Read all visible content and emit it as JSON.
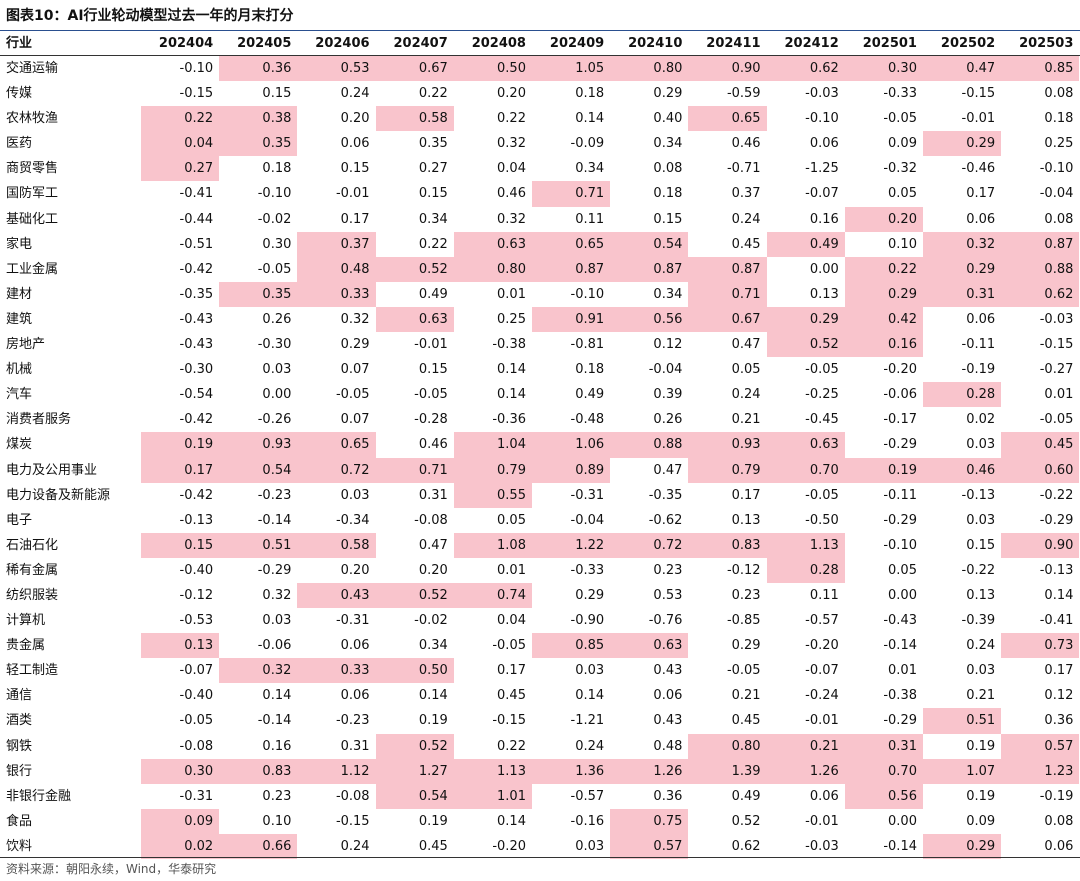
{
  "title": "图表10：AI行业轮动模型过去一年的月末打分",
  "source": "资料来源：朝阳永续，Wind，华泰研究",
  "header": {
    "first": "行业",
    "months": [
      "202404",
      "202405",
      "202406",
      "202407",
      "202408",
      "202409",
      "202410",
      "202411",
      "202412",
      "202501",
      "202502",
      "202503"
    ]
  },
  "colors": {
    "highlight": "#f9c4cc",
    "rule": "#2a4f8f"
  },
  "rows": [
    {
      "name": "交通运输",
      "values": [
        "-0.10",
        "0.36",
        "0.53",
        "0.67",
        "0.50",
        "1.05",
        "0.80",
        "0.90",
        "0.62",
        "0.30",
        "0.47",
        "0.85"
      ],
      "highlight": [
        false,
        true,
        true,
        true,
        true,
        true,
        true,
        true,
        true,
        true,
        true,
        true
      ]
    },
    {
      "name": "传媒",
      "values": [
        "-0.15",
        "0.15",
        "0.24",
        "0.22",
        "0.20",
        "0.18",
        "0.29",
        "-0.59",
        "-0.03",
        "-0.33",
        "-0.15",
        "0.08"
      ],
      "highlight": [
        false,
        false,
        false,
        false,
        false,
        false,
        false,
        false,
        false,
        false,
        false,
        false
      ]
    },
    {
      "name": "农林牧渔",
      "values": [
        "0.22",
        "0.38",
        "0.20",
        "0.58",
        "0.22",
        "0.14",
        "0.40",
        "0.65",
        "-0.10",
        "-0.05",
        "-0.01",
        "0.18"
      ],
      "highlight": [
        true,
        true,
        false,
        true,
        false,
        false,
        false,
        true,
        false,
        false,
        false,
        false
      ]
    },
    {
      "name": "医药",
      "values": [
        "0.04",
        "0.35",
        "0.06",
        "0.35",
        "0.32",
        "-0.09",
        "0.34",
        "0.46",
        "0.06",
        "0.09",
        "0.29",
        "0.25"
      ],
      "highlight": [
        true,
        true,
        false,
        false,
        false,
        false,
        false,
        false,
        false,
        false,
        true,
        false
      ]
    },
    {
      "name": "商贸零售",
      "values": [
        "0.27",
        "0.18",
        "0.15",
        "0.27",
        "0.04",
        "0.34",
        "0.08",
        "-0.71",
        "-1.25",
        "-0.32",
        "-0.46",
        "-0.10"
      ],
      "highlight": [
        true,
        false,
        false,
        false,
        false,
        false,
        false,
        false,
        false,
        false,
        false,
        false
      ]
    },
    {
      "name": "国防军工",
      "values": [
        "-0.41",
        "-0.10",
        "-0.01",
        "0.15",
        "0.46",
        "0.71",
        "0.18",
        "0.37",
        "-0.07",
        "0.05",
        "0.17",
        "-0.04"
      ],
      "highlight": [
        false,
        false,
        false,
        false,
        false,
        true,
        false,
        false,
        false,
        false,
        false,
        false
      ]
    },
    {
      "name": "基础化工",
      "values": [
        "-0.44",
        "-0.02",
        "0.17",
        "0.34",
        "0.32",
        "0.11",
        "0.15",
        "0.24",
        "0.16",
        "0.20",
        "0.06",
        "0.08"
      ],
      "highlight": [
        false,
        false,
        false,
        false,
        false,
        false,
        false,
        false,
        false,
        true,
        false,
        false
      ]
    },
    {
      "name": "家电",
      "values": [
        "-0.51",
        "0.30",
        "0.37",
        "0.22",
        "0.63",
        "0.65",
        "0.54",
        "0.45",
        "0.49",
        "0.10",
        "0.32",
        "0.87"
      ],
      "highlight": [
        false,
        false,
        true,
        false,
        true,
        true,
        true,
        false,
        true,
        false,
        true,
        true
      ]
    },
    {
      "name": "工业金属",
      "values": [
        "-0.42",
        "-0.05",
        "0.48",
        "0.52",
        "0.80",
        "0.87",
        "0.87",
        "0.87",
        "0.00",
        "0.22",
        "0.29",
        "0.88"
      ],
      "highlight": [
        false,
        false,
        true,
        true,
        true,
        true,
        true,
        true,
        false,
        true,
        true,
        true
      ]
    },
    {
      "name": "建材",
      "values": [
        "-0.35",
        "0.35",
        "0.33",
        "0.49",
        "0.01",
        "-0.10",
        "0.34",
        "0.71",
        "0.13",
        "0.29",
        "0.31",
        "0.62"
      ],
      "highlight": [
        false,
        true,
        true,
        false,
        false,
        false,
        false,
        true,
        false,
        true,
        true,
        true
      ]
    },
    {
      "name": "建筑",
      "values": [
        "-0.43",
        "0.26",
        "0.32",
        "0.63",
        "0.25",
        "0.91",
        "0.56",
        "0.67",
        "0.29",
        "0.42",
        "0.06",
        "-0.03"
      ],
      "highlight": [
        false,
        false,
        false,
        true,
        false,
        true,
        true,
        true,
        true,
        true,
        false,
        false
      ]
    },
    {
      "name": "房地产",
      "values": [
        "-0.43",
        "-0.30",
        "0.29",
        "-0.01",
        "-0.38",
        "-0.81",
        "0.12",
        "0.47",
        "0.52",
        "0.16",
        "-0.11",
        "-0.15"
      ],
      "highlight": [
        false,
        false,
        false,
        false,
        false,
        false,
        false,
        false,
        true,
        true,
        false,
        false
      ]
    },
    {
      "name": "机械",
      "values": [
        "-0.30",
        "0.03",
        "0.07",
        "0.15",
        "0.14",
        "0.18",
        "-0.04",
        "0.05",
        "-0.05",
        "-0.20",
        "-0.19",
        "-0.27"
      ],
      "highlight": [
        false,
        false,
        false,
        false,
        false,
        false,
        false,
        false,
        false,
        false,
        false,
        false
      ]
    },
    {
      "name": "汽车",
      "values": [
        "-0.54",
        "0.00",
        "-0.05",
        "-0.05",
        "0.14",
        "0.49",
        "0.39",
        "0.24",
        "-0.25",
        "-0.06",
        "0.28",
        "0.01"
      ],
      "highlight": [
        false,
        false,
        false,
        false,
        false,
        false,
        false,
        false,
        false,
        false,
        true,
        false
      ]
    },
    {
      "name": "消费者服务",
      "values": [
        "-0.42",
        "-0.26",
        "0.07",
        "-0.28",
        "-0.36",
        "-0.48",
        "0.26",
        "0.21",
        "-0.45",
        "-0.17",
        "0.02",
        "-0.05"
      ],
      "highlight": [
        false,
        false,
        false,
        false,
        false,
        false,
        false,
        false,
        false,
        false,
        false,
        false
      ]
    },
    {
      "name": "煤炭",
      "values": [
        "0.19",
        "0.93",
        "0.65",
        "0.46",
        "1.04",
        "1.06",
        "0.88",
        "0.93",
        "0.63",
        "-0.29",
        "0.03",
        "0.45"
      ],
      "highlight": [
        true,
        true,
        true,
        false,
        true,
        true,
        true,
        true,
        true,
        false,
        false,
        true
      ]
    },
    {
      "name": "电力及公用事业",
      "values": [
        "0.17",
        "0.54",
        "0.72",
        "0.71",
        "0.79",
        "0.89",
        "0.47",
        "0.79",
        "0.70",
        "0.19",
        "0.46",
        "0.60"
      ],
      "highlight": [
        true,
        true,
        true,
        true,
        true,
        true,
        false,
        true,
        true,
        true,
        true,
        true
      ]
    },
    {
      "name": "电力设备及新能源",
      "values": [
        "-0.42",
        "-0.23",
        "0.03",
        "0.31",
        "0.55",
        "-0.31",
        "-0.35",
        "0.17",
        "-0.05",
        "-0.11",
        "-0.13",
        "-0.22"
      ],
      "highlight": [
        false,
        false,
        false,
        false,
        true,
        false,
        false,
        false,
        false,
        false,
        false,
        false
      ]
    },
    {
      "name": "电子",
      "values": [
        "-0.13",
        "-0.14",
        "-0.34",
        "-0.08",
        "0.05",
        "-0.04",
        "-0.62",
        "0.13",
        "-0.50",
        "-0.29",
        "0.03",
        "-0.29"
      ],
      "highlight": [
        false,
        false,
        false,
        false,
        false,
        false,
        false,
        false,
        false,
        false,
        false,
        false
      ]
    },
    {
      "name": "石油石化",
      "values": [
        "0.15",
        "0.51",
        "0.58",
        "0.47",
        "1.08",
        "1.22",
        "0.72",
        "0.83",
        "1.13",
        "-0.10",
        "0.15",
        "0.90"
      ],
      "highlight": [
        true,
        true,
        true,
        false,
        true,
        true,
        true,
        true,
        true,
        false,
        false,
        true
      ]
    },
    {
      "name": "稀有金属",
      "values": [
        "-0.40",
        "-0.29",
        "0.20",
        "0.20",
        "0.01",
        "-0.33",
        "0.23",
        "-0.12",
        "0.28",
        "0.05",
        "-0.22",
        "-0.13"
      ],
      "highlight": [
        false,
        false,
        false,
        false,
        false,
        false,
        false,
        false,
        true,
        false,
        false,
        false
      ]
    },
    {
      "name": "纺织服装",
      "values": [
        "-0.12",
        "0.32",
        "0.43",
        "0.52",
        "0.74",
        "0.29",
        "0.53",
        "0.23",
        "0.11",
        "0.00",
        "0.13",
        "0.14"
      ],
      "highlight": [
        false,
        false,
        true,
        true,
        true,
        false,
        false,
        false,
        false,
        false,
        false,
        false
      ]
    },
    {
      "name": "计算机",
      "values": [
        "-0.53",
        "0.03",
        "-0.31",
        "-0.02",
        "0.04",
        "-0.90",
        "-0.76",
        "-0.85",
        "-0.57",
        "-0.43",
        "-0.39",
        "-0.41"
      ],
      "highlight": [
        false,
        false,
        false,
        false,
        false,
        false,
        false,
        false,
        false,
        false,
        false,
        false
      ]
    },
    {
      "name": "贵金属",
      "values": [
        "0.13",
        "-0.06",
        "0.06",
        "0.34",
        "-0.05",
        "0.85",
        "0.63",
        "0.29",
        "-0.20",
        "-0.14",
        "0.24",
        "0.73"
      ],
      "highlight": [
        true,
        false,
        false,
        false,
        false,
        true,
        true,
        false,
        false,
        false,
        false,
        true
      ]
    },
    {
      "name": "轻工制造",
      "values": [
        "-0.07",
        "0.32",
        "0.33",
        "0.50",
        "0.17",
        "0.03",
        "0.43",
        "-0.05",
        "-0.07",
        "0.01",
        "0.03",
        "0.17"
      ],
      "highlight": [
        false,
        true,
        true,
        true,
        false,
        false,
        false,
        false,
        false,
        false,
        false,
        false
      ]
    },
    {
      "name": "通信",
      "values": [
        "-0.40",
        "0.14",
        "0.06",
        "0.14",
        "0.45",
        "0.14",
        "0.06",
        "0.21",
        "-0.24",
        "-0.38",
        "0.21",
        "0.12"
      ],
      "highlight": [
        false,
        false,
        false,
        false,
        false,
        false,
        false,
        false,
        false,
        false,
        false,
        false
      ]
    },
    {
      "name": "酒类",
      "values": [
        "-0.05",
        "-0.14",
        "-0.23",
        "0.19",
        "-0.15",
        "-1.21",
        "0.43",
        "0.45",
        "-0.01",
        "-0.29",
        "0.51",
        "0.36"
      ],
      "highlight": [
        false,
        false,
        false,
        false,
        false,
        false,
        false,
        false,
        false,
        false,
        true,
        false
      ]
    },
    {
      "name": "钢铁",
      "values": [
        "-0.08",
        "0.16",
        "0.31",
        "0.52",
        "0.22",
        "0.24",
        "0.48",
        "0.80",
        "0.21",
        "0.31",
        "0.19",
        "0.57"
      ],
      "highlight": [
        false,
        false,
        false,
        true,
        false,
        false,
        false,
        true,
        true,
        true,
        false,
        true
      ]
    },
    {
      "name": "银行",
      "values": [
        "0.30",
        "0.83",
        "1.12",
        "1.27",
        "1.13",
        "1.36",
        "1.26",
        "1.39",
        "1.26",
        "0.70",
        "1.07",
        "1.23"
      ],
      "highlight": [
        true,
        true,
        true,
        true,
        true,
        true,
        true,
        true,
        true,
        true,
        true,
        true
      ]
    },
    {
      "name": "非银行金融",
      "values": [
        "-0.31",
        "0.23",
        "-0.08",
        "0.54",
        "1.01",
        "-0.57",
        "0.36",
        "0.49",
        "0.06",
        "0.56",
        "0.19",
        "-0.19"
      ],
      "highlight": [
        false,
        false,
        false,
        true,
        true,
        false,
        false,
        false,
        false,
        true,
        false,
        false
      ]
    },
    {
      "name": "食品",
      "values": [
        "0.09",
        "0.10",
        "-0.15",
        "0.19",
        "0.14",
        "-0.16",
        "0.75",
        "0.52",
        "-0.01",
        "0.00",
        "0.09",
        "0.08"
      ],
      "highlight": [
        true,
        false,
        false,
        false,
        false,
        false,
        true,
        false,
        false,
        false,
        false,
        false
      ]
    },
    {
      "name": "饮料",
      "values": [
        "0.02",
        "0.66",
        "0.24",
        "0.45",
        "-0.20",
        "0.03",
        "0.57",
        "0.62",
        "-0.03",
        "-0.14",
        "0.29",
        "0.06"
      ],
      "highlight": [
        true,
        true,
        false,
        false,
        false,
        false,
        true,
        false,
        false,
        false,
        true,
        false
      ]
    }
  ]
}
